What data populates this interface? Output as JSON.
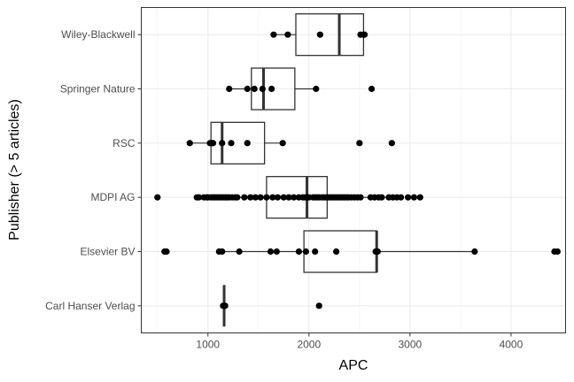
{
  "chart_data": {
    "type": "boxplot",
    "orientation": "horizontal",
    "xlabel": "APC",
    "ylabel": "Publisher (> 5 articles)",
    "xlim": [
      340,
      4540
    ],
    "xticks": [
      1000,
      2000,
      3000,
      4000
    ],
    "grid": true,
    "theme": "bw",
    "point_color": "#000000",
    "box_color": "#333333",
    "categories": [
      "Wiley-Blackwell",
      "Springer Nature",
      "RSC",
      "MDPI AG",
      "Elsevier BV",
      "Carl Hanser Verlag"
    ],
    "boxes": [
      {
        "category": "Wiley-Blackwell",
        "whisker_low": 1650,
        "q1": 1870,
        "median": 2300,
        "q3": 2540,
        "whisker_high": 2540
      },
      {
        "category": "Springer Nature",
        "whisker_low": 1210,
        "q1": 1430,
        "median": 1550,
        "q3": 1860,
        "whisker_high": 2070
      },
      {
        "category": "RSC",
        "whisker_low": 820,
        "q1": 1030,
        "median": 1140,
        "q3": 1560,
        "whisker_high": 1740
      },
      {
        "category": "MDPI AG",
        "whisker_low": 890,
        "q1": 1580,
        "median": 1980,
        "q3": 2180,
        "whisker_high": 2890
      },
      {
        "category": "Elsevier BV",
        "whisker_low": 1110,
        "q1": 1950,
        "median": 2670,
        "q3": 2670,
        "whisker_high": 3640
      },
      {
        "category": "Carl Hanser Verlag",
        "whisker_low": 1160,
        "q1": 1160,
        "median": 1160,
        "q3": 1160,
        "whisker_high": 1160
      }
    ],
    "points": [
      {
        "category": "Wiley-Blackwell",
        "values": [
          1650,
          1790,
          2110,
          2510,
          2540,
          2550
        ]
      },
      {
        "category": "Springer Nature",
        "values": [
          1210,
          1390,
          1460,
          1540,
          1630,
          2070,
          2620
        ]
      },
      {
        "category": "RSC",
        "values": [
          820,
          1020,
          1040,
          1050,
          1140,
          1230,
          1390,
          1740,
          2500,
          2820
        ]
      },
      {
        "category": "MDPI AG",
        "values": [
          500,
          890,
          910,
          960,
          990,
          1000,
          1030,
          1050,
          1070,
          1090,
          1110,
          1130,
          1150,
          1170,
          1190,
          1210,
          1240,
          1270,
          1290,
          1360,
          1420,
          1470,
          1520,
          1580,
          1640,
          1690,
          1750,
          1800,
          1850,
          1900,
          1940,
          1960,
          1980,
          2000,
          2040,
          2060,
          2080,
          2100,
          2130,
          2150,
          2170,
          2190,
          2210,
          2230,
          2250,
          2270,
          2290,
          2310,
          2330,
          2350,
          2370,
          2390,
          2420,
          2450,
          2480,
          2510,
          2610,
          2650,
          2690,
          2720,
          2790,
          2830,
          2870,
          2910,
          2980,
          3040,
          3100
        ]
      },
      {
        "category": "Elsevier BV",
        "values": [
          570,
          590,
          1110,
          1140,
          1310,
          1620,
          1680,
          1900,
          1970,
          2060,
          2270,
          2660,
          2670,
          2680,
          3640,
          4430,
          4460
        ]
      },
      {
        "category": "Carl Hanser Verlag",
        "values": [
          1150,
          1160,
          1170,
          2100
        ]
      }
    ]
  }
}
